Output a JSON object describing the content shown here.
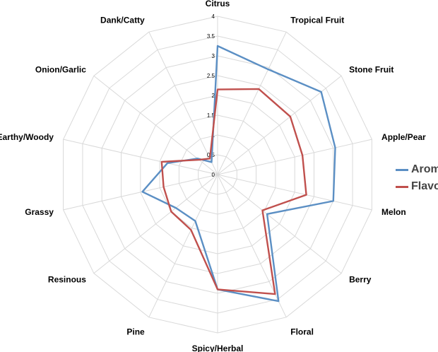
{
  "chart_data": {
    "type": "radar",
    "title": "",
    "categories": [
      "Citrus",
      "Tropical Fruit",
      "Stone Fruit",
      "Apple/Pear",
      "Melon",
      "Berry",
      "Floral",
      "Spicy/Herbal",
      "Pine",
      "Resinous",
      "Grassy",
      "Earthy/Woody",
      "Onion/Garlic",
      "Dank/Catty"
    ],
    "ticks": [
      "0",
      "0.5",
      "1",
      "1.5",
      "2",
      "2.5",
      "3",
      "3.5",
      "4"
    ],
    "rlim": [
      0,
      4
    ],
    "grid": true,
    "legend_position": "right",
    "series": [
      {
        "name": "Aroma",
        "color": "#5b8fc4",
        "values": [
          3.25,
          2.95,
          3.35,
          3.05,
          3.0,
          1.6,
          3.55,
          2.9,
          1.3,
          1.35,
          1.95,
          1.3,
          0.65,
          0.35
        ]
      },
      {
        "name": "Flavor",
        "color": "#c0504d",
        "values": [
          2.15,
          2.4,
          2.35,
          2.2,
          2.3,
          1.45,
          3.35,
          2.9,
          1.55,
          1.5,
          1.4,
          1.45,
          0.6,
          0.45
        ]
      }
    ]
  }
}
